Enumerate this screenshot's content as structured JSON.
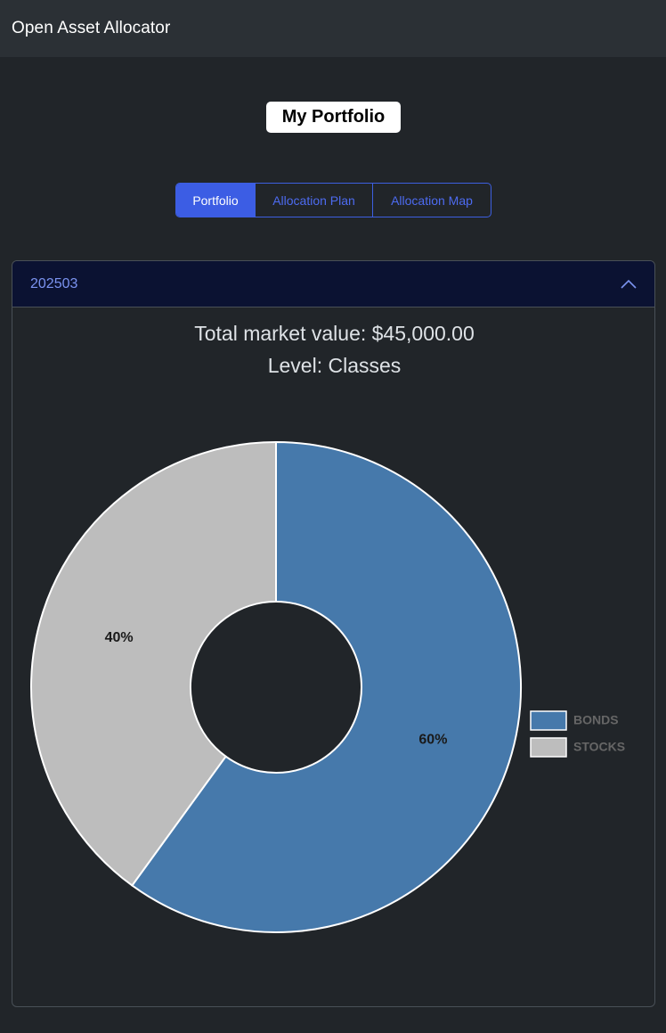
{
  "app": {
    "title": "Open Asset Allocator"
  },
  "page": {
    "title": "My Portfolio"
  },
  "tabs": [
    {
      "label": "Portfolio",
      "active": true
    },
    {
      "label": "Allocation Plan",
      "active": false
    },
    {
      "label": "Allocation Map",
      "active": false
    }
  ],
  "accordion": {
    "title": "202503",
    "expanded": true,
    "total_market_value": "Total market value: $45,000.00",
    "level": "Level: Classes"
  },
  "colors": {
    "bonds": "#4679ab",
    "stocks": "#bdbdbd",
    "accent": "#3c5de4"
  },
  "chart_data": {
    "type": "pie",
    "variant": "doughnut",
    "categories": [
      "BONDS",
      "STOCKS"
    ],
    "values": [
      60,
      40
    ],
    "labels": [
      "60%",
      "40%"
    ],
    "legend_position": "right"
  }
}
